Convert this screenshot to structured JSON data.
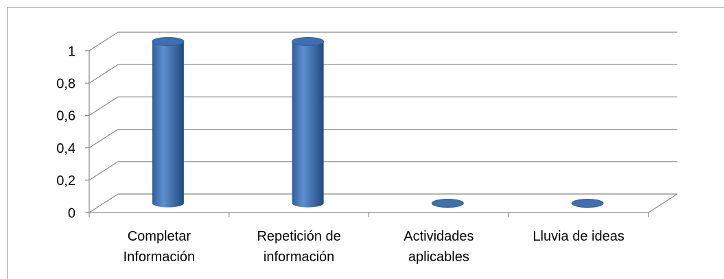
{
  "chart_data": {
    "type": "bar3d",
    "categories": [
      "Completar Información",
      "Repetición de información",
      "Actividades aplicables",
      "Lluvia de ideas"
    ],
    "values": [
      1,
      1,
      0,
      0
    ],
    "color": "#4f81bd",
    "ylim": [
      0,
      1
    ],
    "yticks": [
      0,
      {
        "value": 0.2,
        "label": "0,2"
      },
      {
        "value": 0.4,
        "label": "0,4"
      },
      {
        "value": 0.6,
        "label": "0,6"
      },
      {
        "value": 0.8,
        "label": "0,8"
      },
      1
    ],
    "grid": true
  }
}
